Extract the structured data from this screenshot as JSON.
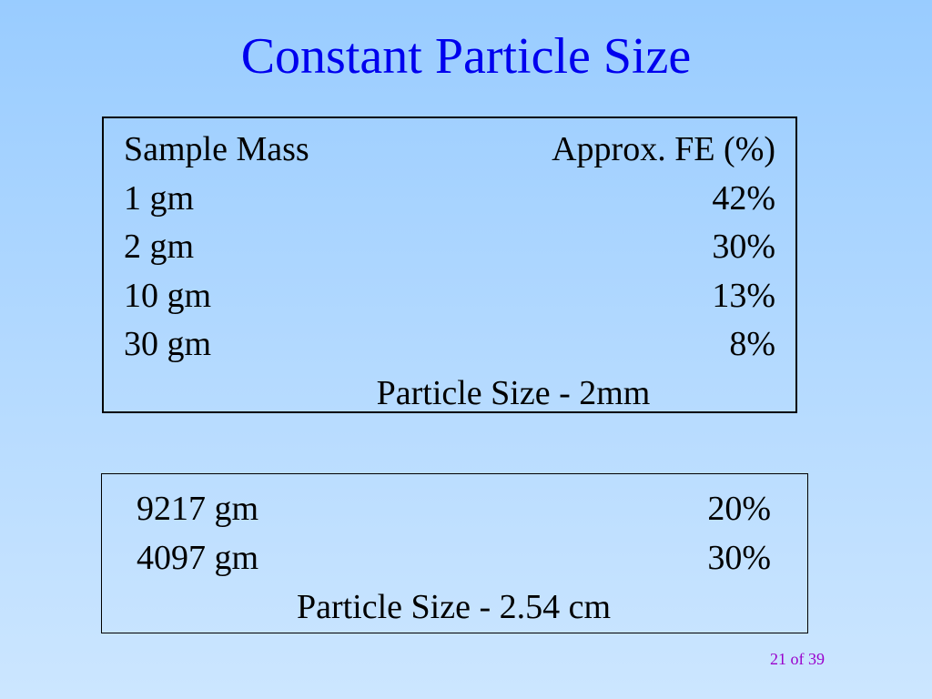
{
  "title": "Constant Particle Size",
  "table1": {
    "header": [
      "Sample Mass",
      "Approx. FE (%)"
    ],
    "rows": [
      [
        "1 gm",
        "42%"
      ],
      [
        "2 gm",
        "30%"
      ],
      [
        "10 gm",
        "13%"
      ],
      [
        "30 gm",
        "8%"
      ]
    ],
    "caption": "Particle Size - 2mm"
  },
  "table2": {
    "rows": [
      [
        "9217 gm",
        "20%"
      ],
      [
        "4097 gm",
        "30%"
      ]
    ],
    "caption": "Particle Size - 2.54 cm"
  },
  "footer": "21 of 39"
}
